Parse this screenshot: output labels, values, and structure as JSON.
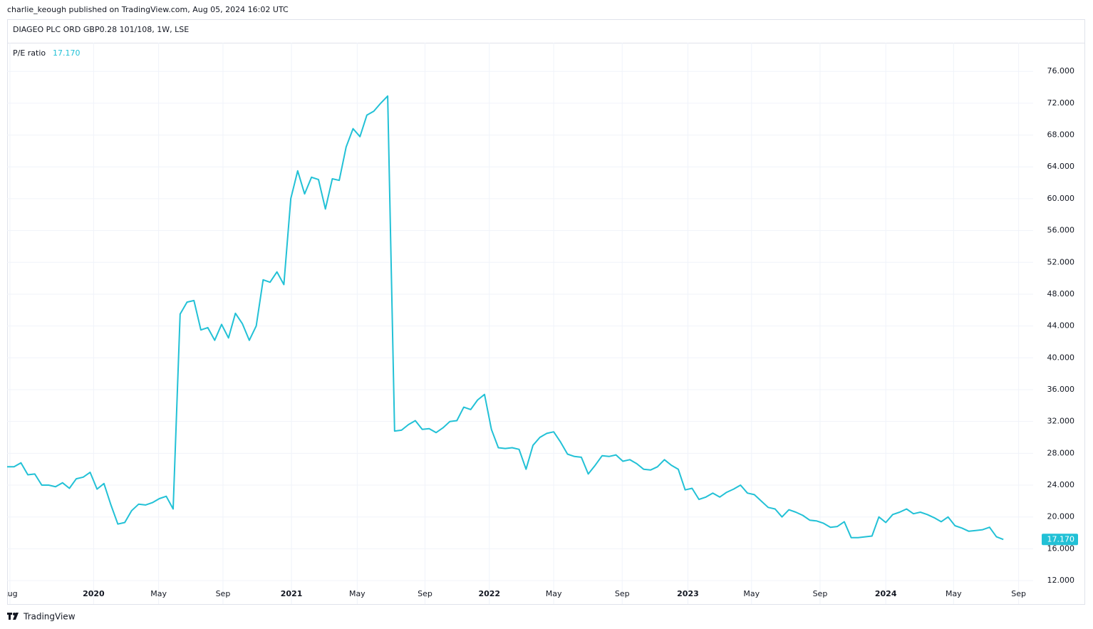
{
  "header": "charlie_keough published on TradingView.com, Aug 05, 2024 16:02 UTC",
  "footer": "TradingView",
  "chart_data": {
    "type": "line",
    "title": "DIAGEO PLC ORD GBP0.28 101/108, 1W, LSE",
    "series": [
      {
        "name": "P/E ratio",
        "color": "#22c1d6",
        "last_label": "17.170",
        "values": [
          26.3,
          26.3,
          26.8,
          25.3,
          25.4,
          24.0,
          24.0,
          23.8,
          24.3,
          23.6,
          24.8,
          25.0,
          25.6,
          23.5,
          24.2,
          21.5,
          19.1,
          19.3,
          20.8,
          21.6,
          21.5,
          21.8,
          22.3,
          22.6,
          21.0,
          45.5,
          47.0,
          47.2,
          43.5,
          43.8,
          42.2,
          44.2,
          42.5,
          45.6,
          44.3,
          42.2,
          44.0,
          49.8,
          49.5,
          50.8,
          49.2,
          60,
          63.5,
          60.6,
          62.7,
          62.4,
          58.7,
          62.5,
          62.3,
          66.5,
          68.8,
          67.8,
          70.5,
          71,
          72,
          72.9,
          30.8,
          30.9,
          31.6,
          32.1,
          31.0,
          31.1,
          30.6,
          31.2,
          32,
          32.1,
          33.8,
          33.5,
          34.7,
          35.4,
          31.0,
          28.7,
          28.6,
          28.7,
          28.5,
          26.0,
          29.0,
          30.0,
          30.5,
          30.7,
          29.4,
          27.9,
          27.6,
          27.5,
          25.4,
          26.5,
          27.7,
          27.6,
          27.8,
          27.0,
          27.2,
          26.7,
          26.0,
          25.9,
          26.3,
          27.2,
          26.5,
          26.0,
          23.4,
          23.6,
          22.2,
          22.5,
          23.0,
          22.5,
          23.1,
          23.5,
          24.0,
          23.0,
          22.8,
          22.0,
          21.2,
          21.0,
          20.0,
          20.9,
          20.6,
          20.2,
          19.6,
          19.5,
          19.2,
          18.7,
          18.8,
          19.4,
          17.4,
          17.4,
          17.5,
          17.6,
          20.0,
          19.3,
          20.3,
          20.6,
          21.0,
          20.4,
          20.6,
          20.3,
          19.9,
          19.4,
          20.0,
          18.9,
          18.6,
          18.2,
          18.3,
          18.4,
          18.7,
          17.5,
          17.17
        ]
      }
    ],
    "xlim": [
      0,
      148.3
    ],
    "xticks": [
      {
        "value": 0.4,
        "label": "Aug"
      },
      {
        "value": 12.5,
        "label": "2020"
      },
      {
        "value": 21.9,
        "label": "May"
      },
      {
        "value": 31.2,
        "label": "Sep"
      },
      {
        "value": 41.1,
        "label": "2021"
      },
      {
        "value": 50.6,
        "label": "May"
      },
      {
        "value": 60.4,
        "label": "Sep"
      },
      {
        "value": 69.7,
        "label": "2022"
      },
      {
        "value": 79.0,
        "label": "May"
      },
      {
        "value": 88.9,
        "label": "Sep"
      },
      {
        "value": 98.4,
        "label": "2023"
      },
      {
        "value": 107.6,
        "label": "May"
      },
      {
        "value": 117.5,
        "label": "Sep"
      },
      {
        "value": 127.0,
        "label": "2024"
      },
      {
        "value": 136.8,
        "label": "May"
      },
      {
        "value": 146.2,
        "label": "Sep"
      }
    ],
    "ylim": [
      9.05,
      79.6
    ],
    "yticks": [
      {
        "value": 12,
        "label": "12.000"
      },
      {
        "value": 16,
        "label": "16.000"
      },
      {
        "value": 20,
        "label": "20.000"
      },
      {
        "value": 24,
        "label": "24.000"
      },
      {
        "value": 28,
        "label": "28.000"
      },
      {
        "value": 32,
        "label": "32.000"
      },
      {
        "value": 36,
        "label": "36.000"
      },
      {
        "value": 40,
        "label": "40.000"
      },
      {
        "value": 44,
        "label": "44.000"
      },
      {
        "value": 48,
        "label": "48.000"
      },
      {
        "value": 52,
        "label": "52.000"
      },
      {
        "value": 56,
        "label": "56.000"
      },
      {
        "value": 60,
        "label": "60.000"
      },
      {
        "value": 64,
        "label": "64.000"
      },
      {
        "value": 68,
        "label": "68.000"
      },
      {
        "value": 72,
        "label": "72.000"
      },
      {
        "value": 76,
        "label": "76.000"
      }
    ],
    "grid": true
  }
}
